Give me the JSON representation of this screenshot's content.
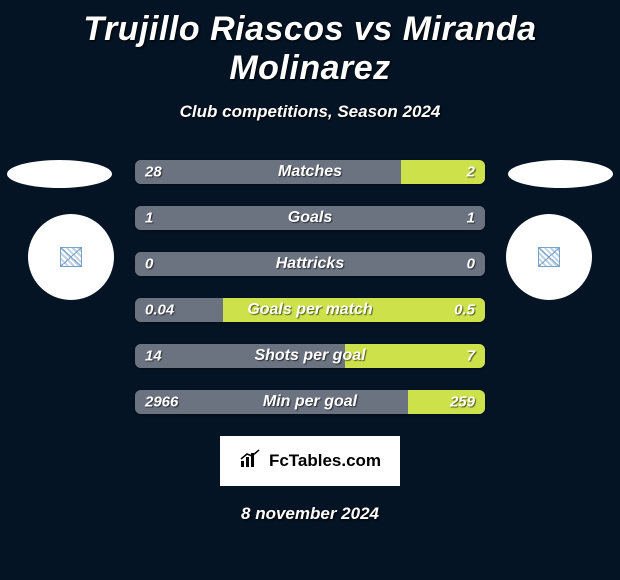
{
  "title": "Trujillo Riascos vs Miranda Molinarez",
  "subtitle": "Club competitions, Season 2024",
  "date": "8 november 2024",
  "colors": {
    "background": "#041424",
    "left_bar": "#6b7280",
    "right_bar": "#cde14a",
    "neutral_bar": "#6b7280",
    "text": "#ffffff"
  },
  "logo": {
    "text": "FcTables.com",
    "icon": "chart-icon"
  },
  "stats": [
    {
      "label": "Matches",
      "left_value": "28",
      "right_value": "2",
      "left_num": 28,
      "right_num": 2,
      "left_color": "#6b7280",
      "right_color": "#cde14a",
      "left_width_pct": 76,
      "right_width_pct": 24
    },
    {
      "label": "Goals",
      "left_value": "1",
      "right_value": "1",
      "left_num": 1,
      "right_num": 1,
      "left_color": "#6b7280",
      "right_color": "#6b7280",
      "left_width_pct": 50,
      "right_width_pct": 50
    },
    {
      "label": "Hattricks",
      "left_value": "0",
      "right_value": "0",
      "left_num": 0,
      "right_num": 0,
      "left_color": "#6b7280",
      "right_color": "#6b7280",
      "left_width_pct": 50,
      "right_width_pct": 50
    },
    {
      "label": "Goals per match",
      "left_value": "0.04",
      "right_value": "0.5",
      "left_num": 0.04,
      "right_num": 0.5,
      "left_color": "#6b7280",
      "right_color": "#cde14a",
      "left_width_pct": 25,
      "right_width_pct": 75
    },
    {
      "label": "Shots per goal",
      "left_value": "14",
      "right_value": "7",
      "left_num": 14,
      "right_num": 7,
      "left_color": "#6b7280",
      "right_color": "#cde14a",
      "left_width_pct": 60,
      "right_width_pct": 40
    },
    {
      "label": "Min per goal",
      "left_value": "2966",
      "right_value": "259",
      "left_num": 2966,
      "right_num": 259,
      "left_color": "#6b7280",
      "right_color": "#cde14a",
      "left_width_pct": 78,
      "right_width_pct": 22
    }
  ]
}
